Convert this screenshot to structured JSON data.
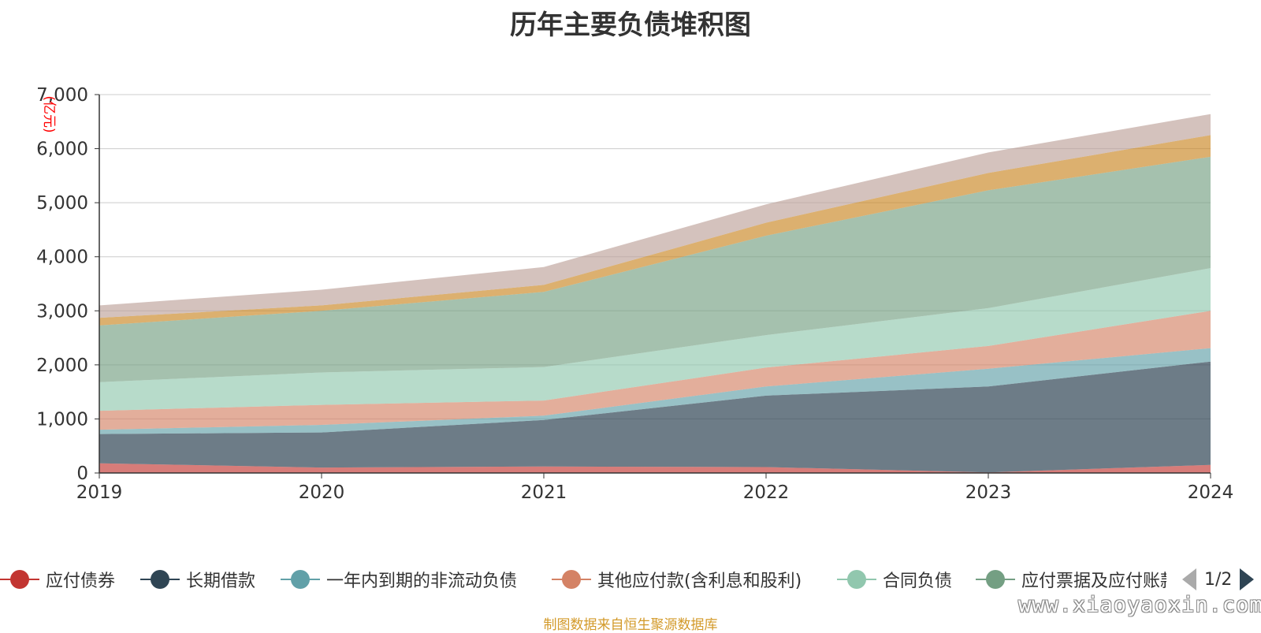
{
  "chart_data": {
    "type": "area",
    "title": "历年主要负债堆积图",
    "unit_label": "(亿元)",
    "x": [
      "2019",
      "2020",
      "2021",
      "2022",
      "2023",
      "2024"
    ],
    "ylim": [
      0,
      7000
    ],
    "yticks": [
      "0",
      "1,000",
      "2,000",
      "3,000",
      "4,000",
      "5,000",
      "6,000",
      "7,000"
    ],
    "ytick_values": [
      0,
      1000,
      2000,
      3000,
      4000,
      5000,
      6000,
      7000
    ],
    "grid": true,
    "stacked": true,
    "legend_position": "bottom",
    "series": [
      {
        "name": "应付债券",
        "color": "#c23531",
        "values": [
          180,
          100,
          120,
          110,
          10,
          150
        ]
      },
      {
        "name": "长期借款",
        "color": "#2f4554",
        "values": [
          540,
          650,
          860,
          1320,
          1590,
          1910
        ]
      },
      {
        "name": "一年内到期的非流动负债",
        "color": "#61a0a8",
        "values": [
          80,
          140,
          80,
          170,
          330,
          250
        ]
      },
      {
        "name": "其他应付款(含利息和股利)",
        "color": "#d48265",
        "values": [
          350,
          370,
          280,
          350,
          420,
          690
        ]
      },
      {
        "name": "合同负债",
        "color": "#91c7ae",
        "values": [
          530,
          600,
          620,
          600,
          700,
          790
        ]
      },
      {
        "name": "应付票据及应付账款",
        "color": "#749f83",
        "values": [
          1050,
          1140,
          1390,
          1840,
          2180,
          2060
        ]
      },
      {
        "color": "#ca8622",
        "values": [
          140,
          100,
          130,
          240,
          320,
          400
        ]
      },
      {
        "color": "#bda29a",
        "values": [
          230,
          290,
          330,
          340,
          380,
          390
        ]
      }
    ]
  },
  "legend": {
    "page_text": "1/2"
  },
  "source_note": "制图数据来自恒生聚源数据库",
  "watermark": "www.xiaoyaoxin.com"
}
